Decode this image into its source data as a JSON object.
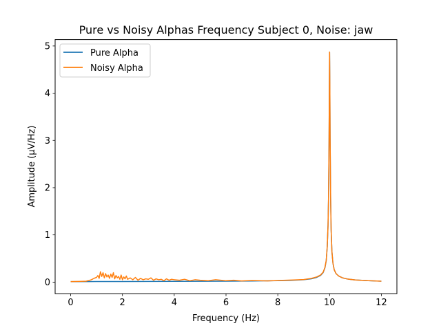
{
  "chart_data": {
    "type": "line",
    "title": "Pure vs Noisy Alphas Frequency Subject 0, Noise: jaw",
    "xlabel": "Frequency (Hz)",
    "ylabel": "Amplitude (μV/Hz)",
    "xlim": [
      -0.6,
      12.6
    ],
    "ylim": [
      -0.245,
      5.135
    ],
    "xticks": [
      0,
      2,
      4,
      6,
      8,
      10,
      12
    ],
    "xtick_labels": [
      "0",
      "2",
      "4",
      "6",
      "8",
      "10",
      "12"
    ],
    "yticks": [
      0,
      1,
      2,
      3,
      4,
      5
    ],
    "ytick_labels": [
      "0",
      "1",
      "2",
      "3",
      "4",
      "5"
    ],
    "grid": false,
    "legend_position": "top-left",
    "series": [
      {
        "name": "Pure Alpha",
        "color": "#1f77b4",
        "x": [
          0,
          1,
          2,
          3,
          4,
          5,
          6,
          7,
          8,
          8.5,
          9,
          9.3,
          9.5,
          9.65,
          9.75,
          9.82,
          9.87,
          9.91,
          9.94,
          9.96,
          9.98,
          9.99,
          10.0,
          10.01,
          10.02,
          10.04,
          10.06,
          10.09,
          10.13,
          10.18,
          10.25,
          10.35,
          10.5,
          10.7,
          11,
          11.5,
          12
        ],
        "y": [
          0.01,
          0.012,
          0.013,
          0.015,
          0.016,
          0.018,
          0.02,
          0.024,
          0.03,
          0.036,
          0.05,
          0.07,
          0.1,
          0.14,
          0.2,
          0.3,
          0.45,
          0.75,
          1.2,
          1.8,
          3.0,
          4.0,
          4.87,
          4.2,
          3.1,
          1.8,
          1.1,
          0.65,
          0.4,
          0.26,
          0.18,
          0.13,
          0.09,
          0.065,
          0.045,
          0.03,
          0.02
        ]
      },
      {
        "name": "Noisy Alpha",
        "color": "#ff7f0e",
        "x": [
          0,
          0.3,
          0.6,
          0.8,
          0.9,
          1.0,
          1.05,
          1.1,
          1.15,
          1.2,
          1.25,
          1.3,
          1.35,
          1.4,
          1.45,
          1.5,
          1.55,
          1.6,
          1.65,
          1.7,
          1.75,
          1.8,
          1.85,
          1.9,
          1.95,
          2.0,
          2.05,
          2.1,
          2.15,
          2.2,
          2.3,
          2.4,
          2.5,
          2.6,
          2.7,
          2.8,
          2.9,
          3.0,
          3.1,
          3.2,
          3.3,
          3.4,
          3.5,
          3.6,
          3.7,
          3.8,
          3.9,
          4.0,
          4.2,
          4.4,
          4.6,
          4.8,
          5.0,
          5.3,
          5.6,
          6.0,
          6.3,
          6.6,
          7.0,
          7.3,
          7.6,
          8.0,
          8.3,
          8.6,
          9.0,
          9.3,
          9.5,
          9.65,
          9.75,
          9.82,
          9.87,
          9.91,
          9.94,
          9.96,
          9.98,
          9.99,
          10.0,
          10.01,
          10.02,
          10.04,
          10.06,
          10.09,
          10.13,
          10.18,
          10.25,
          10.35,
          10.5,
          10.7,
          11,
          11.5,
          12
        ],
        "y": [
          0.01,
          0.015,
          0.02,
          0.05,
          0.08,
          0.1,
          0.14,
          0.08,
          0.22,
          0.12,
          0.2,
          0.09,
          0.18,
          0.11,
          0.15,
          0.08,
          0.17,
          0.1,
          0.2,
          0.07,
          0.14,
          0.09,
          0.12,
          0.06,
          0.15,
          0.05,
          0.11,
          0.07,
          0.13,
          0.06,
          0.09,
          0.05,
          0.1,
          0.04,
          0.08,
          0.05,
          0.07,
          0.06,
          0.09,
          0.04,
          0.07,
          0.05,
          0.06,
          0.03,
          0.07,
          0.04,
          0.06,
          0.05,
          0.04,
          0.06,
          0.03,
          0.05,
          0.04,
          0.03,
          0.05,
          0.03,
          0.04,
          0.025,
          0.035,
          0.03,
          0.025,
          0.035,
          0.04,
          0.045,
          0.055,
          0.08,
          0.11,
          0.15,
          0.21,
          0.31,
          0.46,
          0.76,
          1.2,
          1.8,
          3.0,
          4.0,
          4.87,
          4.2,
          3.1,
          1.8,
          1.1,
          0.65,
          0.4,
          0.26,
          0.18,
          0.13,
          0.09,
          0.065,
          0.045,
          0.03,
          0.02
        ]
      }
    ]
  }
}
